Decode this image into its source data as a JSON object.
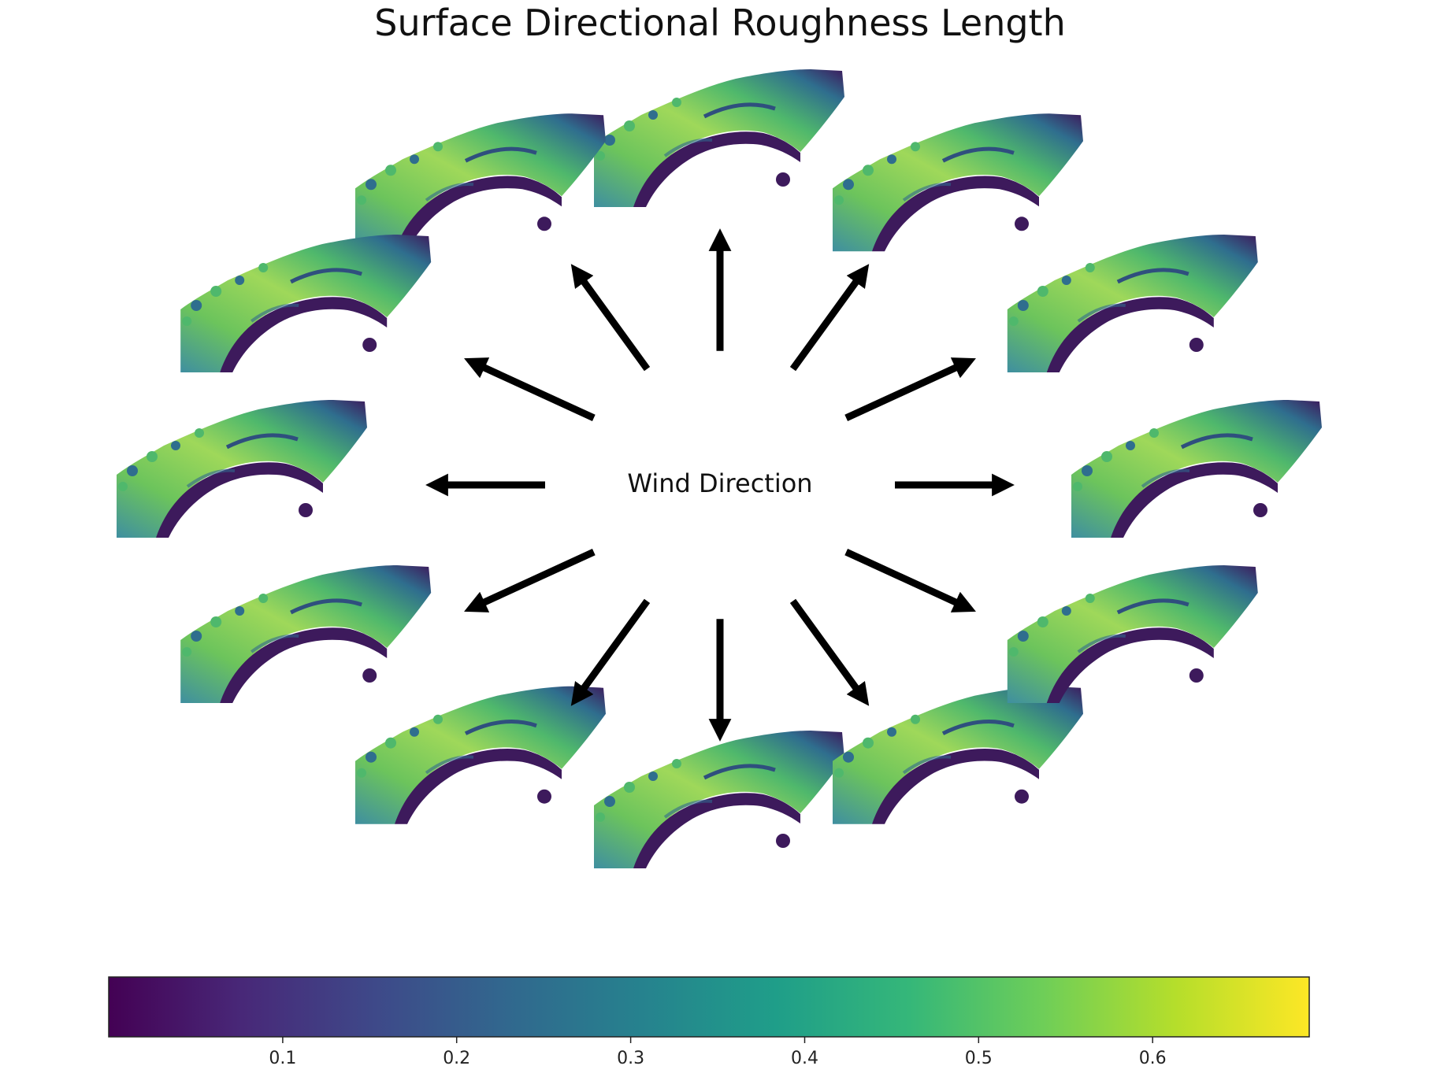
{
  "title": "Surface Directional Roughness Length",
  "center_label": "Wind Direction",
  "directions_deg": [
    0,
    30,
    60,
    90,
    120,
    150,
    180,
    210,
    240,
    270,
    300,
    330
  ],
  "colorbar": {
    "colormap": "viridis",
    "range": [
      0,
      0.69
    ],
    "ticks": [
      "0.1",
      "0.2",
      "0.3",
      "0.4",
      "0.5",
      "0.6"
    ],
    "tick_values": [
      0.1,
      0.2,
      0.3,
      0.4,
      0.5,
      0.6
    ],
    "stops": [
      "#440154",
      "#482878",
      "#3e4989",
      "#31688e",
      "#26828e",
      "#1f9e89",
      "#35b779",
      "#6ece58",
      "#b5de2b",
      "#fde725"
    ]
  },
  "colors": {
    "arrow": "#000000",
    "map_dark": "#3d1a5c",
    "map_mid": "#2f6e8e",
    "map_green": "#4fb86c",
    "map_light": "#9fd85a"
  }
}
